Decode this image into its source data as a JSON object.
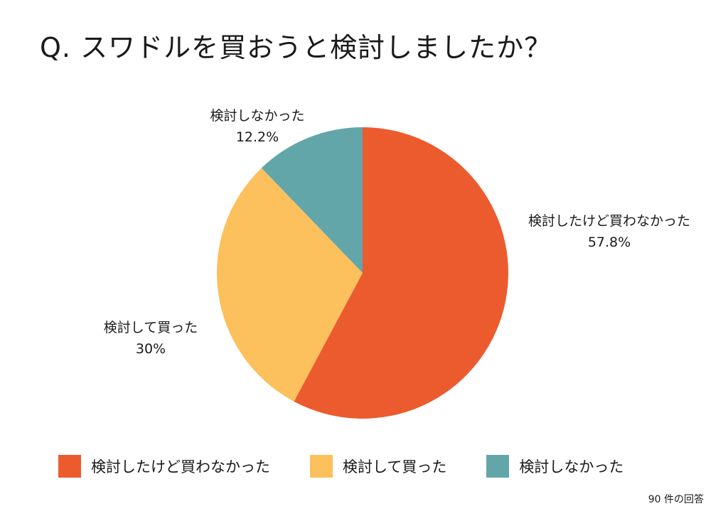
{
  "chart_data": {
    "type": "pie",
    "title": "Q. スワドルを買おうと検討しましたか？",
    "slices": [
      {
        "label": "検討したけど買わなかった",
        "value": 57.8,
        "value_label": "57.8%",
        "color": "#ec5b2e"
      },
      {
        "label": "検討して買った",
        "value": 30,
        "value_label": "30%",
        "color": "#fcc05c"
      },
      {
        "label": "検討しなかった",
        "value": 12.2,
        "value_label": "12.2%",
        "color": "#63a6aa"
      }
    ],
    "legend_position": "bottom",
    "start": "top",
    "direction": "clockwise"
  },
  "footnote": "90 件の回答"
}
